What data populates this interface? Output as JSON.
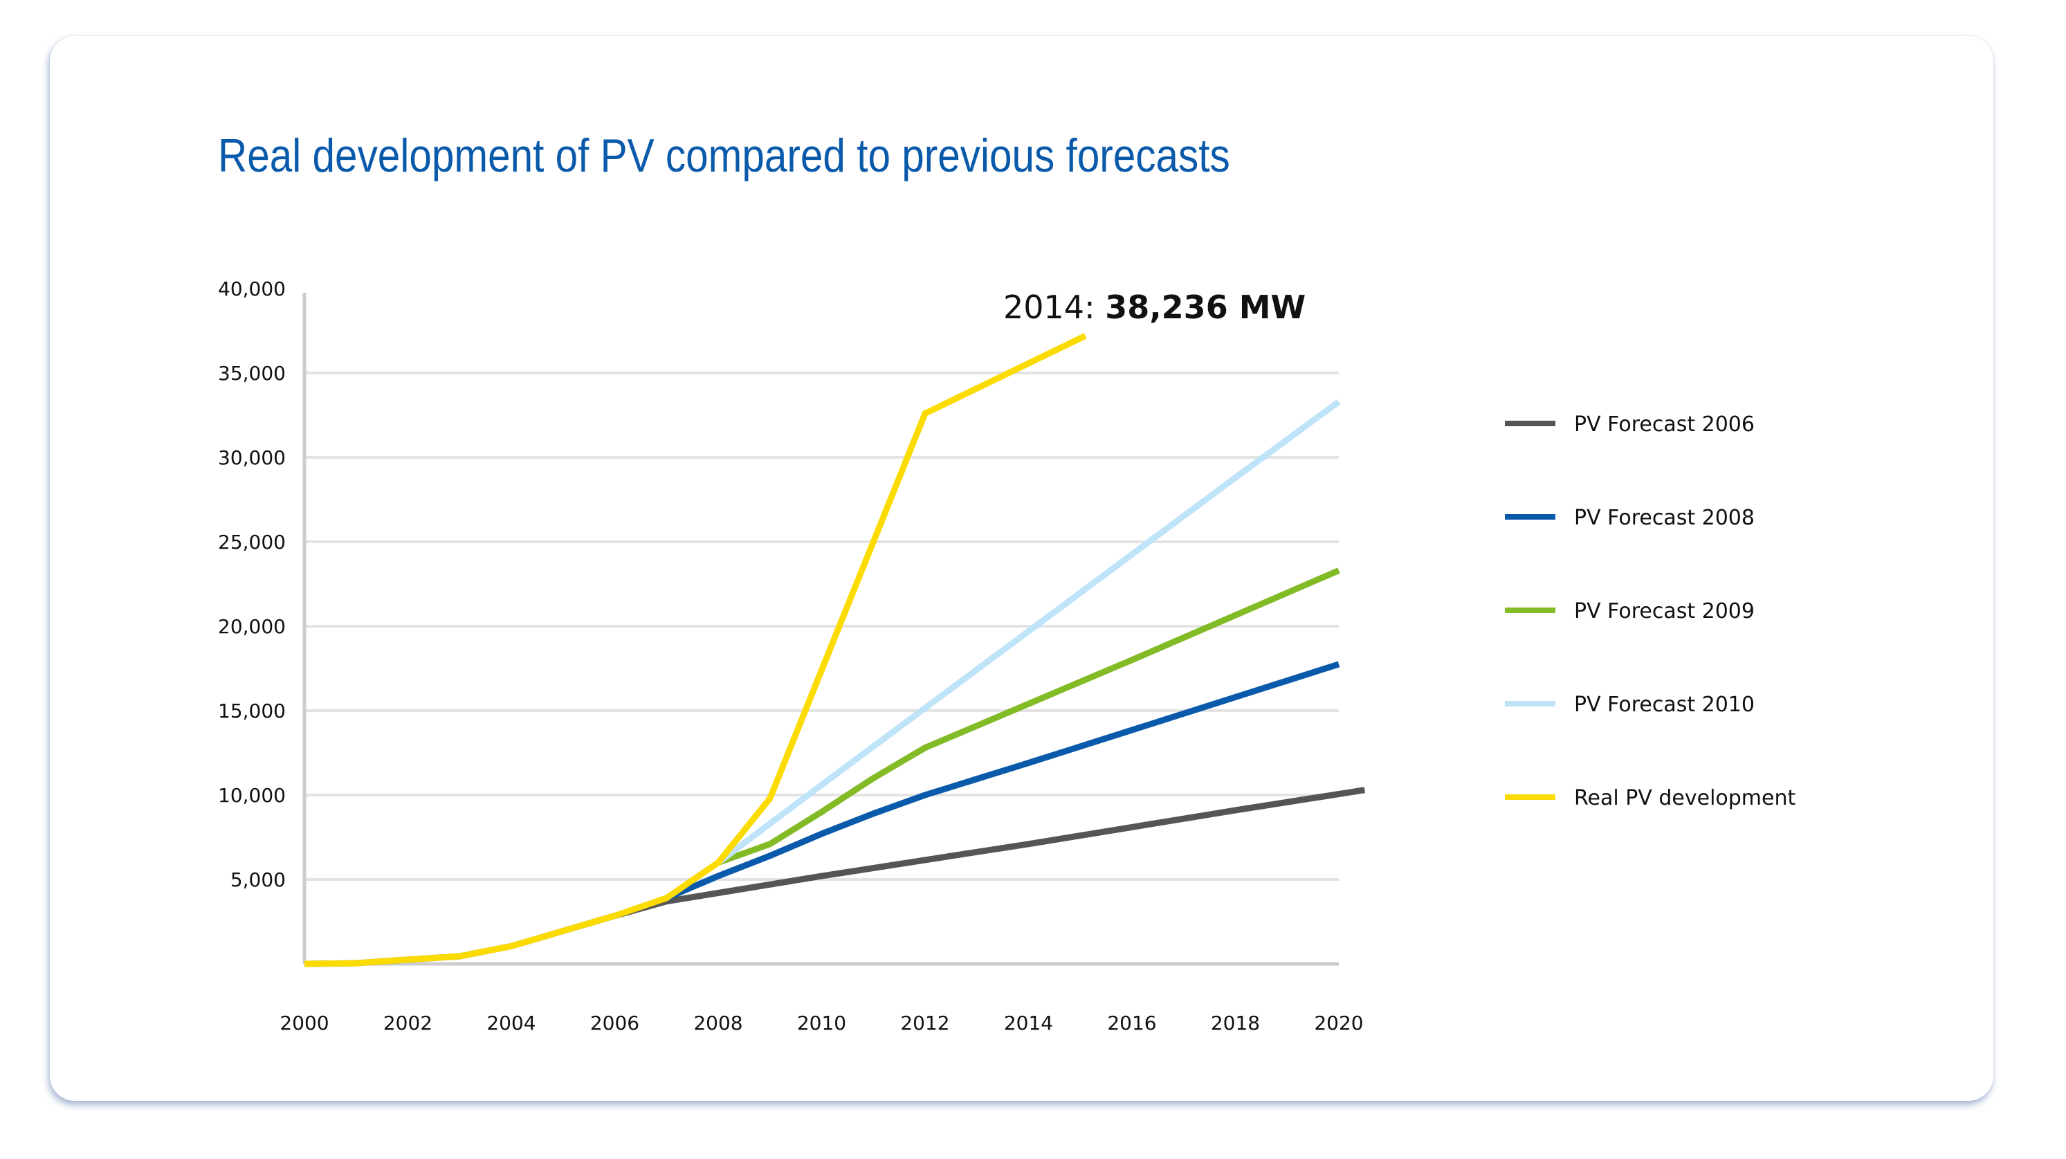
{
  "title": "Real development of PV compared to previous forecasts",
  "chart_data": {
    "type": "line",
    "title": "Real development of PV compared to previous forecasts",
    "xlabel": "",
    "ylabel": "",
    "xlim": [
      2000,
      2020
    ],
    "ylim": [
      0,
      40000
    ],
    "x_ticks": [
      2000,
      2002,
      2004,
      2006,
      2008,
      2010,
      2012,
      2014,
      2016,
      2018,
      2020
    ],
    "x_tick_labels": [
      "2000",
      "2002",
      "2004",
      "2006",
      "2008",
      "2010",
      "2012",
      "2014",
      "2016",
      "2018",
      "2020"
    ],
    "y_ticks": [
      5000,
      10000,
      15000,
      20000,
      25000,
      30000,
      35000,
      40000
    ],
    "y_tick_labels": [
      "5,000",
      "10,000",
      "15,000",
      "20,000",
      "25,000",
      "30,000",
      "35,000",
      "40,000"
    ],
    "grid": "horizontal",
    "legend_position": "right",
    "annotation": {
      "prefix": "2014: ",
      "value": "38,236 MW"
    },
    "series": [
      {
        "name": "PV Forecast 2006",
        "color": "#555555",
        "points": [
          [
            2000,
            0
          ],
          [
            2001,
            40
          ],
          [
            2002,
            250
          ],
          [
            2003,
            450
          ],
          [
            2004,
            1050
          ],
          [
            2005,
            1950
          ],
          [
            2006,
            2850
          ],
          [
            2007,
            3700
          ],
          [
            2008,
            4200
          ],
          [
            2010,
            5200
          ],
          [
            2012,
            6150
          ],
          [
            2014,
            7100
          ],
          [
            2016,
            8100
          ],
          [
            2018,
            9100
          ],
          [
            2020.5,
            10300
          ]
        ]
      },
      {
        "name": "PV Forecast 2008",
        "color": "#0a5aab",
        "points": [
          [
            2007,
            3900
          ],
          [
            2008,
            5200
          ],
          [
            2009,
            6400
          ],
          [
            2010,
            7700
          ],
          [
            2011,
            8900
          ],
          [
            2012,
            10000
          ],
          [
            2014,
            11900
          ],
          [
            2016,
            13850
          ],
          [
            2018,
            15800
          ],
          [
            2020,
            17750
          ]
        ]
      },
      {
        "name": "PV Forecast 2009",
        "color": "#82bb26",
        "points": [
          [
            2008,
            6000
          ],
          [
            2009,
            7100
          ],
          [
            2010,
            9000
          ],
          [
            2011,
            11000
          ],
          [
            2012,
            12800
          ],
          [
            2014,
            15400
          ],
          [
            2016,
            18000
          ],
          [
            2018,
            20650
          ],
          [
            2020,
            23300
          ]
        ]
      },
      {
        "name": "PV Forecast 2010",
        "color": "#bfe3f8",
        "points": [
          [
            2008,
            6000
          ],
          [
            2010,
            10600
          ],
          [
            2012,
            15150
          ],
          [
            2014,
            19700
          ],
          [
            2016,
            24250
          ],
          [
            2018,
            28800
          ],
          [
            2020,
            33300
          ]
        ]
      },
      {
        "name": "Real PV development",
        "color": "#fcdb00",
        "points": [
          [
            2000,
            0
          ],
          [
            2001,
            40
          ],
          [
            2002,
            250
          ],
          [
            2003,
            450
          ],
          [
            2004,
            1050
          ],
          [
            2005,
            1950
          ],
          [
            2006,
            2850
          ],
          [
            2007,
            3900
          ],
          [
            2008,
            6000
          ],
          [
            2009,
            9800
          ],
          [
            2010,
            17400
          ],
          [
            2011,
            25000
          ],
          [
            2012,
            32600
          ],
          [
            2015.1,
            37200
          ]
        ]
      }
    ]
  }
}
